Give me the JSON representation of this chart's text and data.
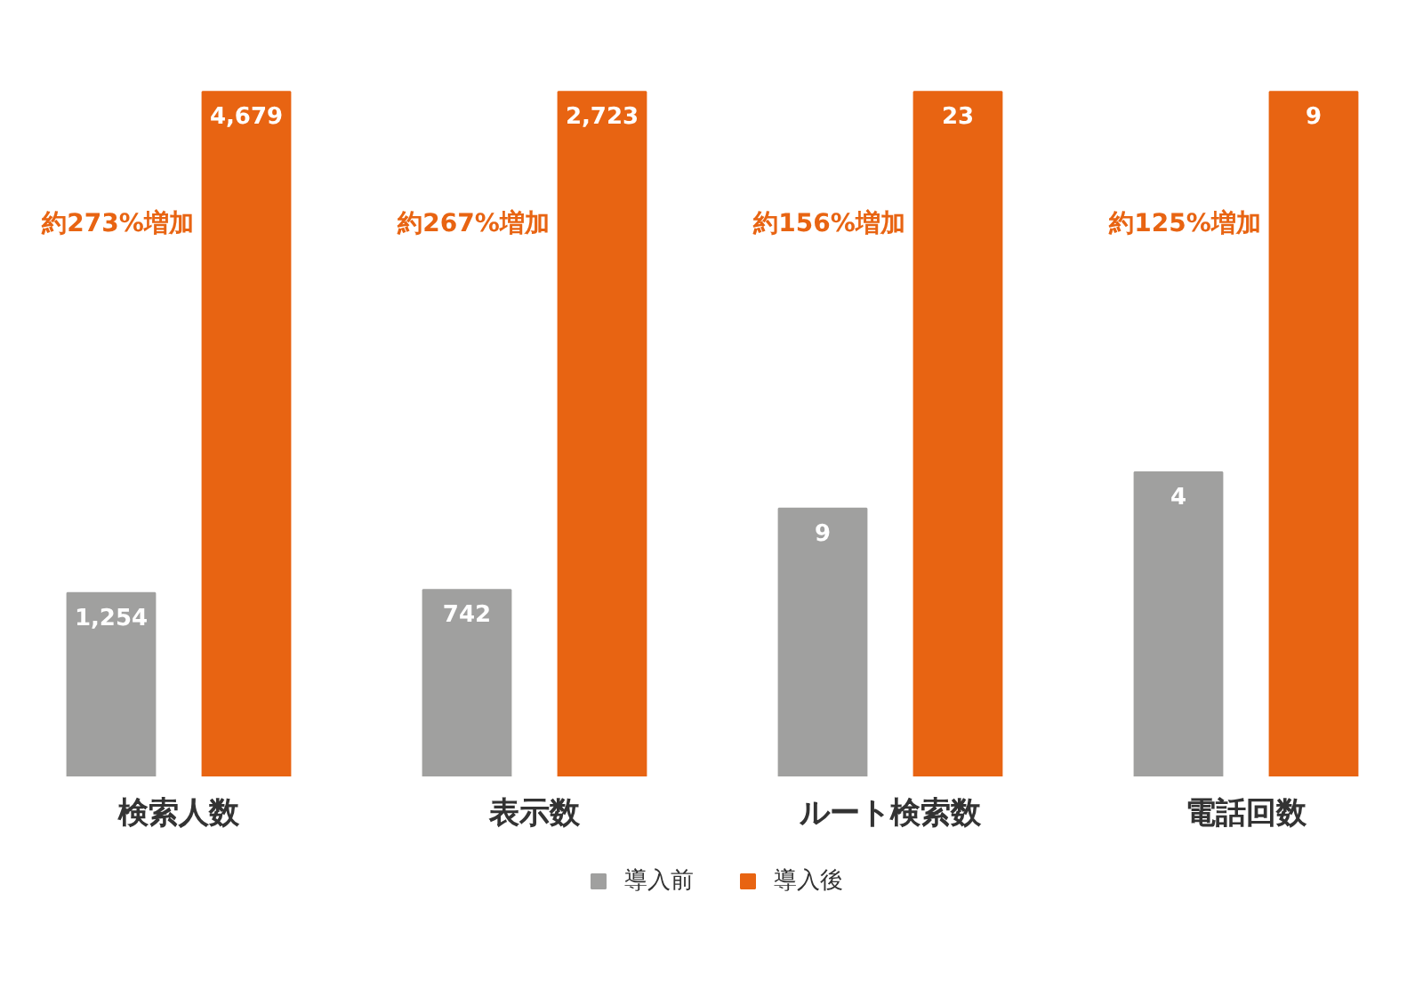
{
  "chart_data": [
    {
      "type": "bar",
      "categories": [
        "検索人数"
      ],
      "series": [
        {
          "name": "導入前",
          "color": "#a0a09f",
          "values": [
            1254
          ],
          "value_labels": [
            "1,254"
          ]
        },
        {
          "name": "導入後",
          "color": "#e86412",
          "values": [
            4679
          ],
          "value_labels": [
            "4,679"
          ]
        }
      ],
      "annotations": [
        "約273%増加"
      ],
      "legend": "bottom",
      "grid": false
    },
    {
      "type": "bar",
      "categories": [
        "表示数"
      ],
      "series": [
        {
          "color": "#a0a09f",
          "values": [
            742
          ],
          "value_labels": [
            "742"
          ]
        },
        {
          "color": "#e86412",
          "values": [
            2723
          ],
          "value_labels": [
            "2,723"
          ]
        }
      ],
      "annotations": [
        "約267%増加"
      ],
      "grid": false
    },
    {
      "type": "bar",
      "categories": [
        "ルート検索数"
      ],
      "series": [
        {
          "color": "#a0a09f",
          "values": [
            9
          ],
          "value_labels": [
            "9"
          ]
        },
        {
          "color": "#e86412",
          "values": [
            23
          ],
          "value_labels": [
            "23"
          ]
        }
      ],
      "annotations": [
        "約156%増加"
      ],
      "grid": false
    },
    {
      "type": "bar",
      "categories": [
        "電話回数"
      ],
      "series": [
        {
          "color": "#a0a09f",
          "values": [
            4
          ],
          "value_labels": [
            "4"
          ]
        },
        {
          "color": "#e86412",
          "values": [
            9
          ],
          "value_labels": [
            "9"
          ]
        }
      ],
      "annotations": [
        "約125%増加"
      ],
      "grid": false
    }
  ]
}
